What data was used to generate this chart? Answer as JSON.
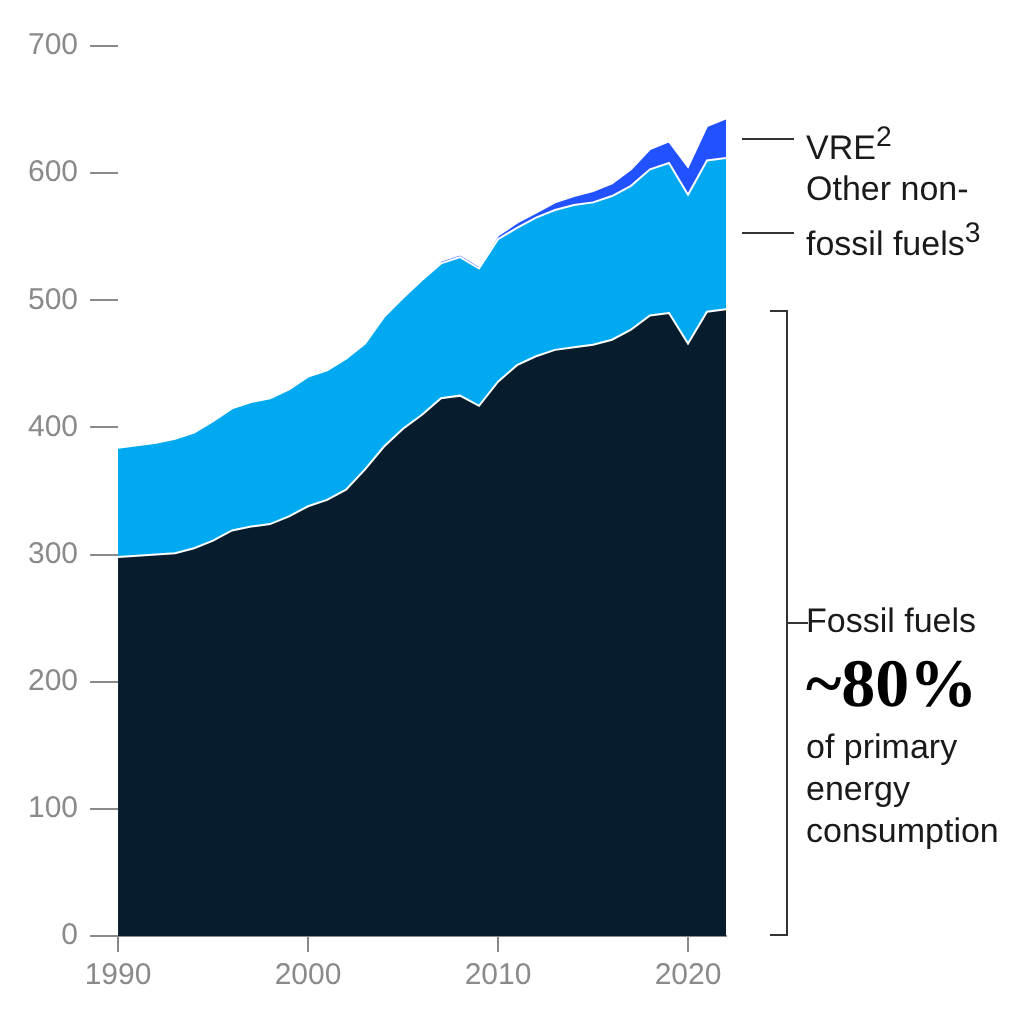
{
  "chart_data": {
    "type": "area",
    "stacked": true,
    "x": [
      1990,
      1991,
      1992,
      1993,
      1994,
      1995,
      1996,
      1997,
      1998,
      1999,
      2000,
      2001,
      2002,
      2003,
      2004,
      2005,
      2006,
      2007,
      2008,
      2009,
      2010,
      2011,
      2012,
      2013,
      2014,
      2015,
      2016,
      2017,
      2018,
      2019,
      2020,
      2021,
      2022
    ],
    "series": [
      {
        "name": "Fossil fuels",
        "color": "#071c2c",
        "values": [
          298,
          299,
          300,
          301,
          305,
          311,
          319,
          322,
          324,
          330,
          338,
          343,
          351,
          367,
          385,
          399,
          410,
          423,
          425,
          417,
          436,
          449,
          456,
          461,
          463,
          465,
          469,
          477,
          488,
          490,
          466,
          491,
          493
        ]
      },
      {
        "name": "Other non-fossil fuels$^{3}$",
        "color": "#00a9f0",
        "values": [
          86,
          87,
          88,
          90,
          91,
          94,
          96,
          98,
          99,
          100,
          102,
          102,
          103,
          99,
          102,
          103,
          106,
          106,
          109,
          108,
          112,
          108,
          109,
          110,
          112,
          112,
          113,
          113,
          115,
          118,
          117,
          119,
          119
        ]
      },
      {
        "name": "VRE$^{2}$",
        "color": "#2251ff",
        "values": [
          0,
          0,
          0,
          0,
          0,
          0,
          0,
          0,
          0,
          0,
          0,
          0,
          0,
          0,
          0,
          0,
          0,
          2,
          2,
          2,
          3,
          4,
          4,
          6,
          7,
          9,
          10,
          13,
          16,
          17,
          22,
          27,
          31
        ]
      }
    ],
    "xlim": [
      1990,
      2022
    ],
    "xticks": [
      1990,
      2000,
      2010,
      2020
    ],
    "ylim": [
      0,
      700
    ],
    "yticks": [
      0,
      100,
      200,
      300,
      400,
      500,
      600,
      700
    ],
    "grid": false,
    "annotations": [
      "~80%",
      "of primary energy consumption"
    ]
  }
}
